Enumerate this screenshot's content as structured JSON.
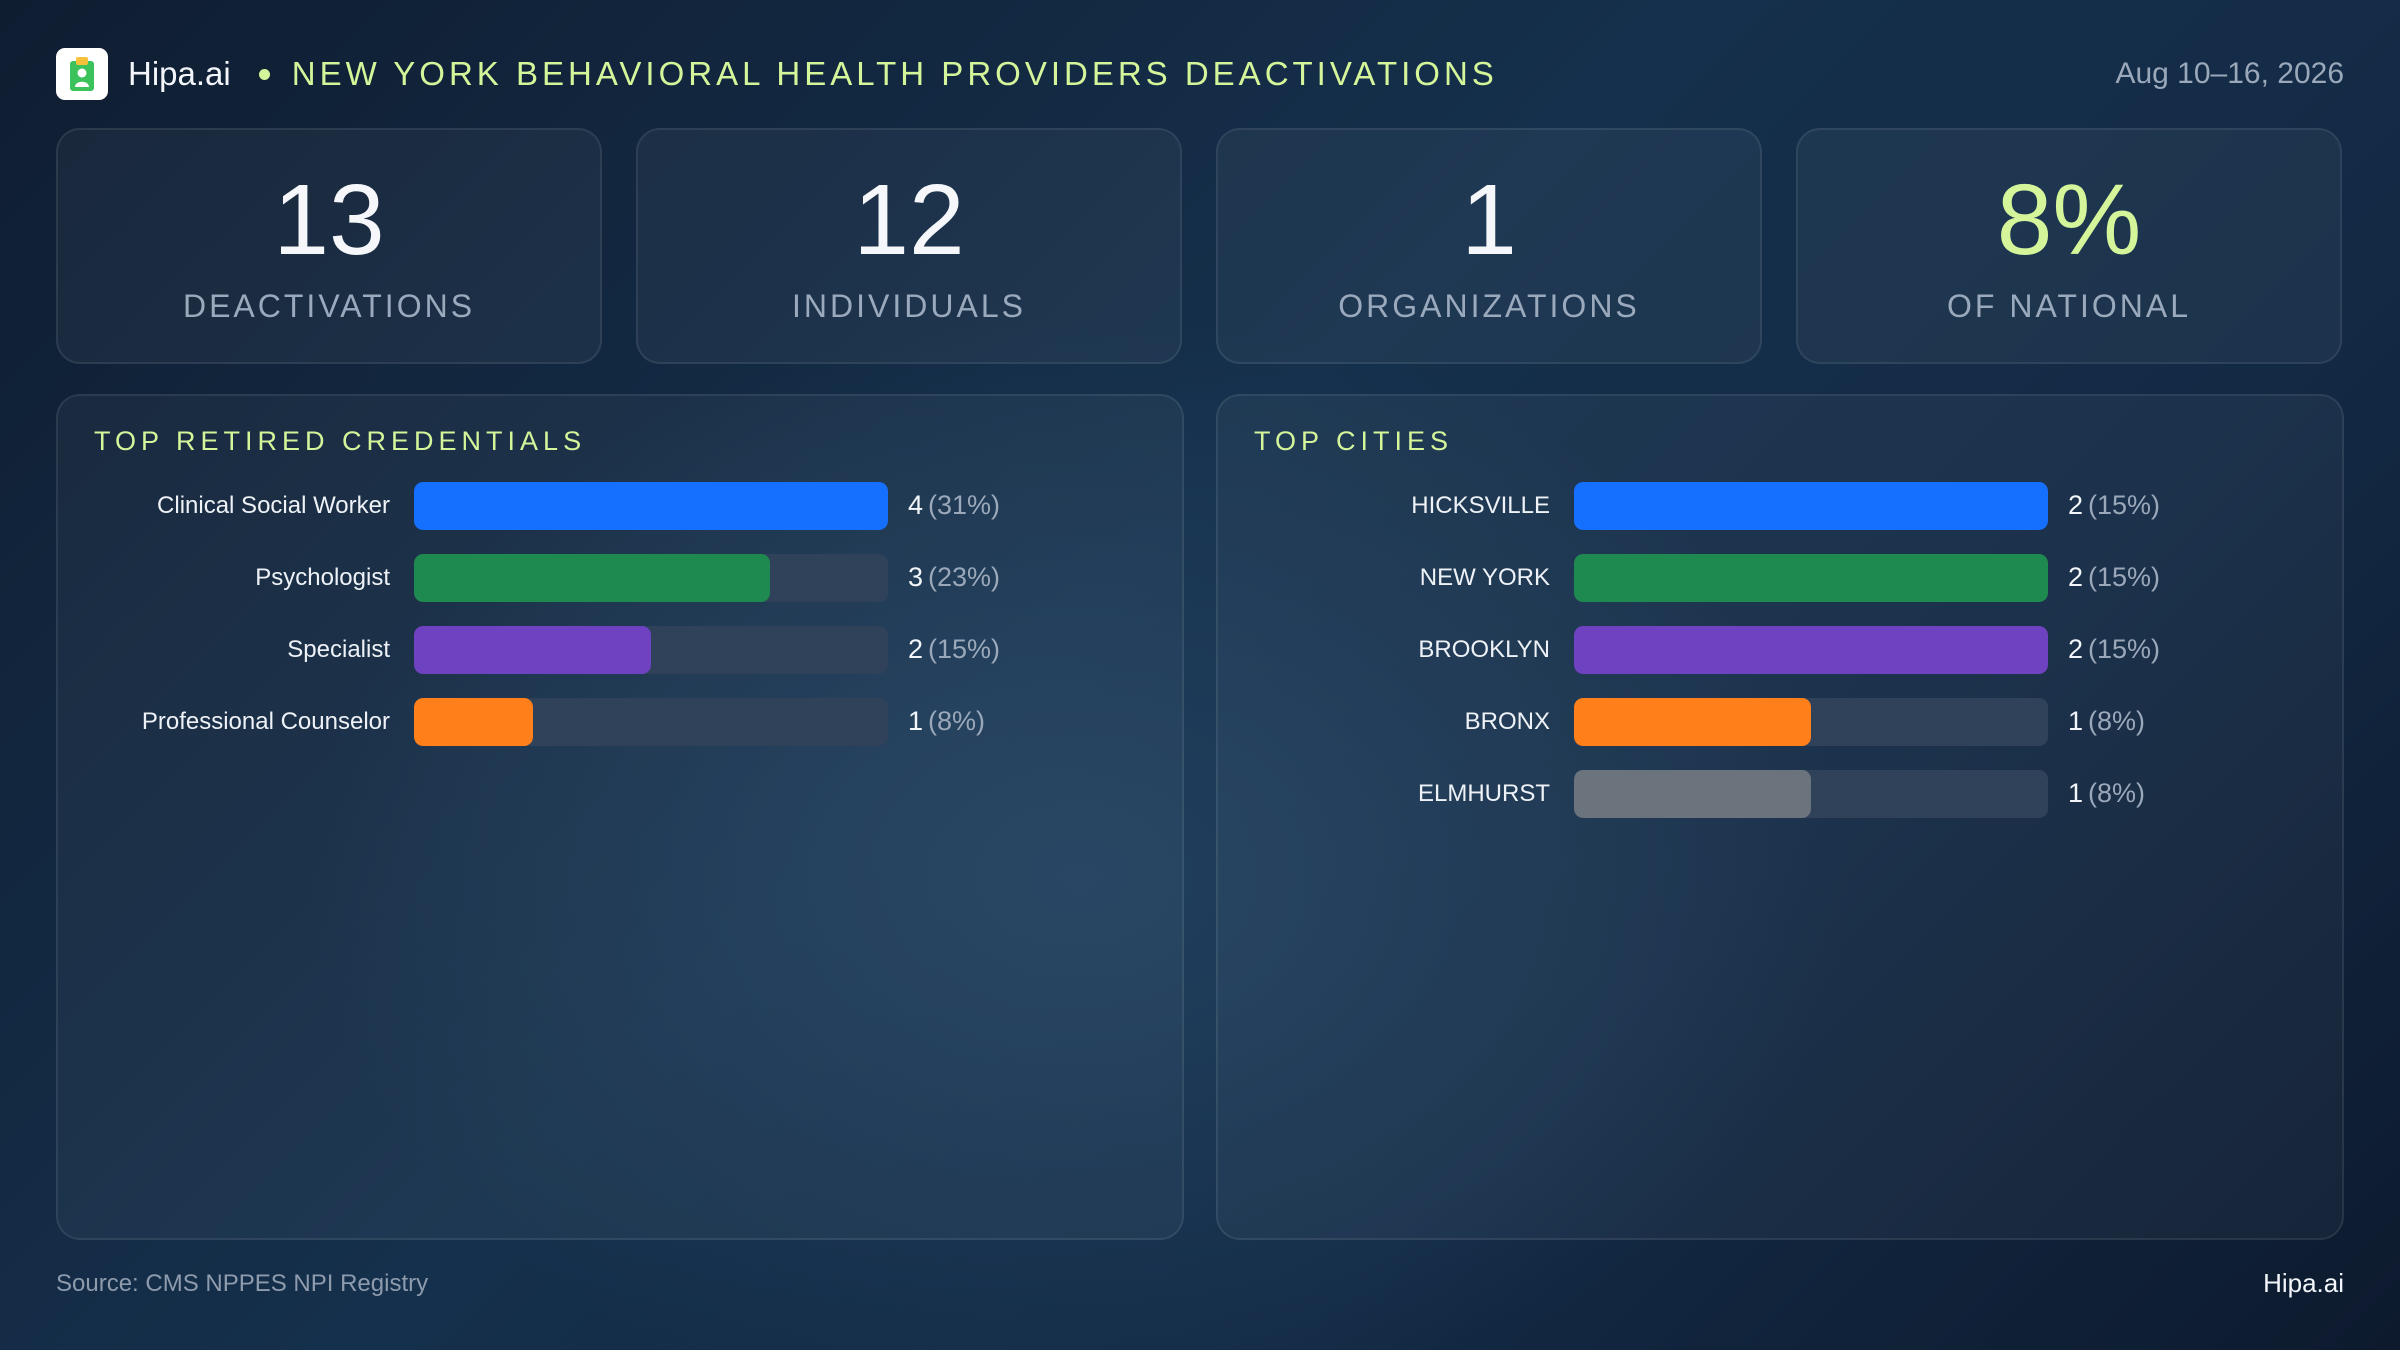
{
  "header": {
    "brand": "Hipa.ai",
    "title": "NEW YORK BEHAVIORAL HEALTH PROVIDERS DEACTIVATIONS",
    "date_range": "Aug 10–16, 2026",
    "logo_icon": "clipboard-icon"
  },
  "kpis": [
    {
      "value": "13",
      "label": "DEACTIVATIONS"
    },
    {
      "value": "12",
      "label": "INDIVIDUALS"
    },
    {
      "value": "1",
      "label": "ORGANIZATIONS"
    },
    {
      "value": "8%",
      "label": "OF NATIONAL",
      "accent": true
    }
  ],
  "colors": {
    "accent": "#d4f59a",
    "track": "#2f4259",
    "blue": "#1570ff",
    "green": "#1f8a4f",
    "purple": "#6f42c1",
    "orange": "#ff7f1a",
    "gray": "#6b737d"
  },
  "chart_data": [
    {
      "type": "bar",
      "orientation": "horizontal",
      "title": "TOP RETIRED CREDENTIALS",
      "categories": [
        "Clinical Social Worker",
        "Psychologist",
        "Specialist",
        "Professional Counselor"
      ],
      "values": [
        4,
        3,
        2,
        1
      ],
      "value_labels": [
        "4",
        "3",
        "2",
        "1"
      ],
      "percent_labels": [
        "(31%)",
        "(23%)",
        "(15%)",
        "(8%)"
      ],
      "colors": [
        "#1570ff",
        "#1f8a4f",
        "#6f42c1",
        "#ff7f1a"
      ],
      "xlim": [
        0,
        4
      ]
    },
    {
      "type": "bar",
      "orientation": "horizontal",
      "title": "TOP CITIES",
      "categories": [
        "HICKSVILLE",
        "NEW YORK",
        "BROOKLYN",
        "BRONX",
        "ELMHURST"
      ],
      "values": [
        2,
        2,
        2,
        1,
        1
      ],
      "value_labels": [
        "2",
        "2",
        "2",
        "1",
        "1"
      ],
      "percent_labels": [
        "(15%)",
        "(15%)",
        "(15%)",
        "(8%)",
        "(8%)"
      ],
      "colors": [
        "#1570ff",
        "#1f8a4f",
        "#6f42c1",
        "#ff7f1a",
        "#6b737d"
      ],
      "xlim": [
        0,
        2
      ]
    }
  ],
  "footer": {
    "source": "Source: CMS NPPES NPI Registry",
    "brand": "Hipa.ai"
  }
}
